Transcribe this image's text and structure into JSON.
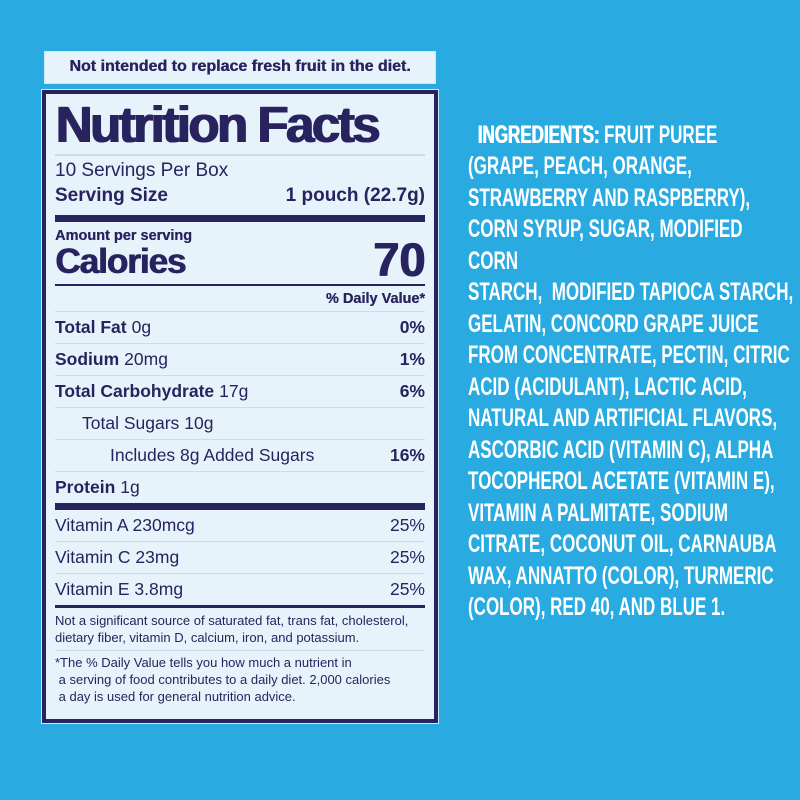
{
  "colors": {
    "background_cyan": "#29abe2",
    "panel_light": "#e7f3fb",
    "navy_text": "#28235f",
    "hairline": "#ccdbe4",
    "ingredients_text": "#ffffff"
  },
  "banner": {
    "text": "Not intended to replace fresh fruit in the diet."
  },
  "label": {
    "title": "Nutrition Facts",
    "servings_per_box": "10 Servings Per Box",
    "serving_size_label": "Serving Size",
    "serving_size_value": "1 pouch (22.7g)",
    "amount_per_serving": "Amount per serving",
    "calories_label": "Calories",
    "calories_value": "70",
    "daily_value_header": "% Daily Value*",
    "rows": [
      {
        "name": "Total Fat",
        "amount": "0g",
        "dv": "0%"
      },
      {
        "name": "Sodium",
        "amount": "20mg",
        "dv": "1%"
      },
      {
        "name": "Total Carbohydrate",
        "amount": "17g",
        "dv": "6%"
      },
      {
        "name": "Total Sugars",
        "amount": "10g",
        "dv": ""
      },
      {
        "name": "Includes 8g Added Sugars",
        "amount": "",
        "dv": "16%"
      },
      {
        "name": "Protein",
        "amount": "1g",
        "dv": ""
      }
    ],
    "vitamins": [
      {
        "name": "Vitamin A 230mcg",
        "dv": "25%"
      },
      {
        "name": "Vitamin C 23mg",
        "dv": "25%"
      },
      {
        "name": "Vitamin E 3.8mg",
        "dv": "25%"
      }
    ],
    "not_significant": "Not a significant source of saturated fat, trans fat, cholesterol,\ndietary fiber, vitamin D, calcium, iron, and potassium.",
    "footnote": "*The % Daily Value tells you how much a nutrient in\n a serving of food contributes to a daily diet. 2,000 calories\n a day is used for general nutrition advice."
  },
  "ingredients": {
    "label": "INGREDIENTS:",
    "text": " FRUIT PUREE\n(GRAPE, PEACH, ORANGE,\nSTRAWBERRY AND RASPBERRY),\nCORN SYRUP, SUGAR, MODIFIED CORN\nSTARCH,  MODIFIED TAPIOCA STARCH,\nGELATIN, CONCORD GRAPE JUICE\nFROM CONCENTRATE, PECTIN, CITRIC\nACID (ACIDULANT), LACTIC ACID,\nNATURAL AND ARTIFICIAL FLAVORS,\nASCORBIC ACID (VITAMIN C), ALPHA\nTOCOPHEROL ACETATE (VITAMIN E),\nVITAMIN A PALMITATE, SODIUM\nCITRATE, COCONUT OIL, CARNAUBA\nWAX, ANNATTO (COLOR), TURMERIC\n(COLOR), RED 40, AND BLUE 1."
  }
}
